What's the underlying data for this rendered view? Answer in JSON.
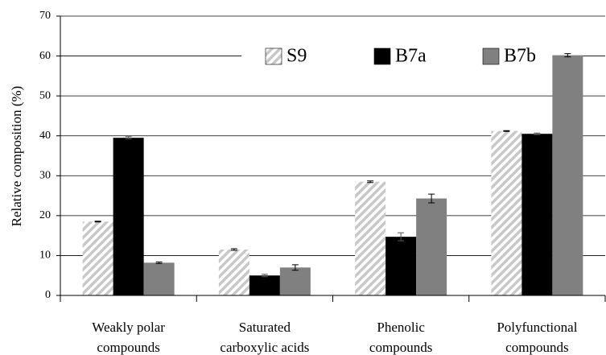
{
  "chart_data": {
    "type": "bar",
    "y_label": "Relative composition (%)",
    "categories": [
      [
        "Weakly polar",
        "compounds"
      ],
      [
        "Saturated",
        "carboxylic acids"
      ],
      [
        "Phenolic",
        "compounds"
      ],
      [
        "Polyfunctional",
        "compounds"
      ]
    ],
    "series": [
      {
        "name": "S9",
        "color": "#c8c8c8",
        "pattern": "hatch",
        "values": [
          18.5,
          11.5,
          28.5,
          41.2
        ],
        "errors": [
          0.1,
          0.2,
          0.2,
          0.1
        ]
      },
      {
        "name": "B7a",
        "color": "#000000",
        "values": [
          39.5,
          5.0,
          14.7,
          40.5
        ],
        "errors": [
          0.3,
          0.3,
          1.0,
          0.2
        ]
      },
      {
        "name": "B7b",
        "color": "#808080",
        "values": [
          8.2,
          7.0,
          24.3,
          60.2
        ],
        "errors": [
          0.2,
          0.7,
          1.1,
          0.4
        ]
      }
    ],
    "ylim": [
      0,
      70
    ],
    "yticks": [
      0,
      10,
      20,
      30,
      40,
      50,
      60,
      70
    ],
    "grid": true,
    "legend": "top-right"
  }
}
